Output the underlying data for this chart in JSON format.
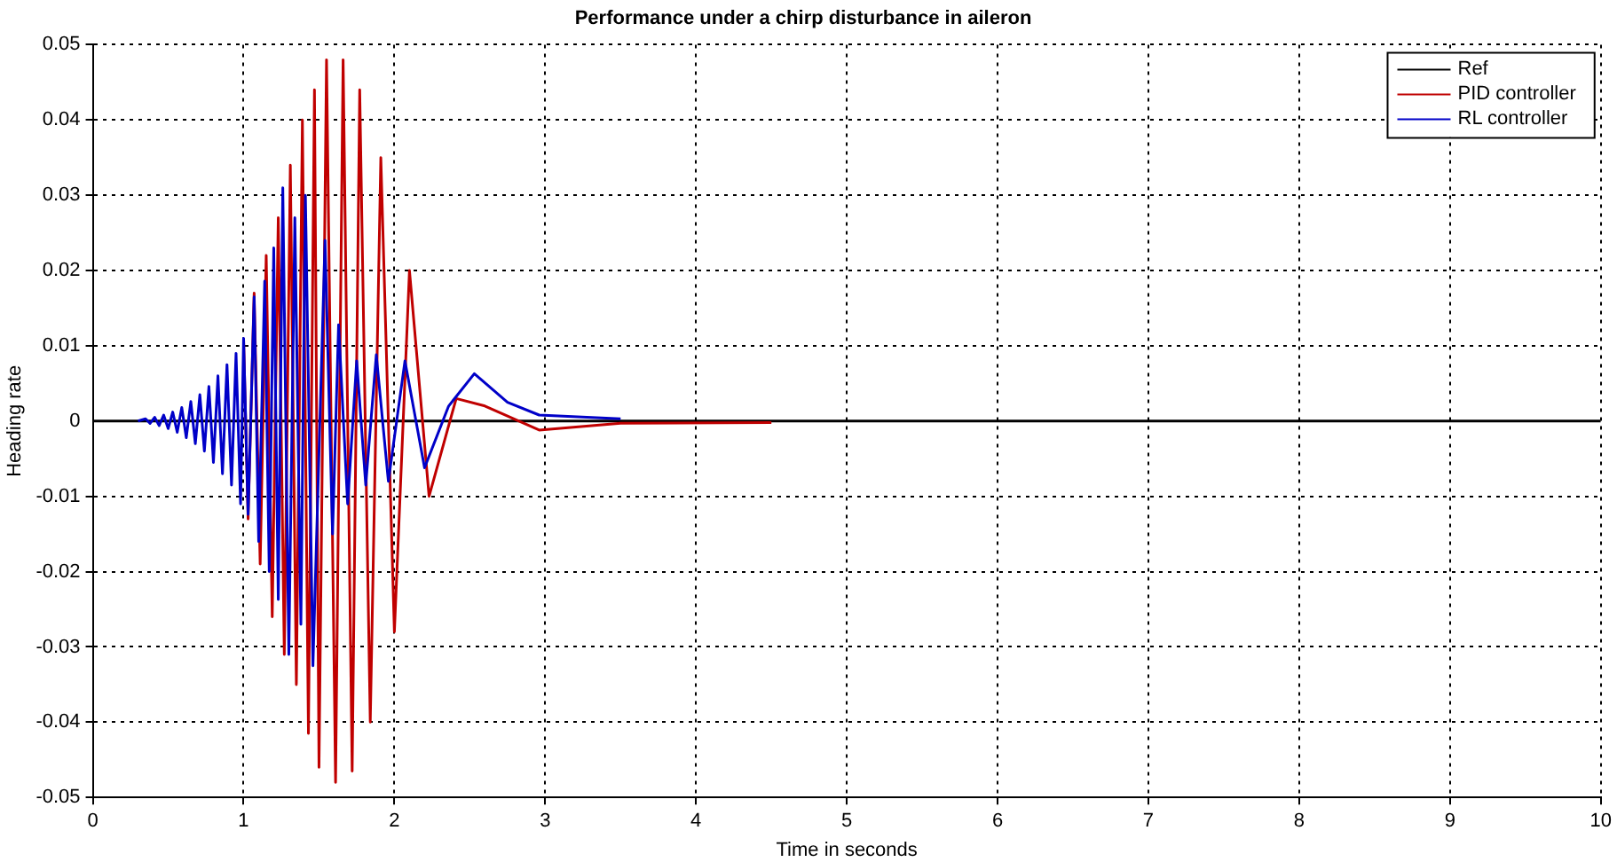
{
  "chart_data": {
    "type": "line",
    "title": "Performance under a chirp disturbance in aileron",
    "xlabel": "Time in seconds",
    "ylabel": "Heading rate",
    "xlim": [
      0,
      10
    ],
    "xticks": [
      0,
      1,
      2,
      3,
      4,
      5,
      6,
      7,
      8,
      9,
      10
    ],
    "ylim": [
      -0.05,
      0.05
    ],
    "yticks": [
      -0.05,
      -0.04,
      -0.03,
      -0.02,
      -0.01,
      0,
      0.01,
      0.02,
      0.03,
      0.04,
      0.05
    ],
    "grid": true,
    "legend": "top right",
    "marker": "none",
    "line_style": "solid",
    "series": [
      {
        "name": "Ref",
        "color": "#000000",
        "x": [
          0,
          10
        ],
        "values": [
          0,
          0
        ]
      },
      {
        "name": "PID controller",
        "color": "#c00000",
        "x": [
          1.0,
          1.03,
          1.07,
          1.11,
          1.15,
          1.19,
          1.23,
          1.27,
          1.31,
          1.35,
          1.39,
          1.43,
          1.47,
          1.5,
          1.55,
          1.61,
          1.66,
          1.72,
          1.77,
          1.84,
          1.91,
          2.0,
          2.1,
          2.23,
          2.41,
          2.6,
          2.96,
          3.5,
          4.5
        ],
        "values": [
          0.011,
          -0.013,
          0.017,
          -0.019,
          0.022,
          -0.026,
          0.027,
          -0.031,
          0.034,
          -0.035,
          0.04,
          -0.0415,
          0.044,
          -0.046,
          0.048,
          -0.048,
          0.048,
          -0.0465,
          0.044,
          -0.04,
          0.035,
          -0.028,
          0.02,
          -0.01,
          0.003,
          0.002,
          -0.0012,
          -0.0003,
          -0.0002
        ]
      },
      {
        "name": "RL controller",
        "color": "#0000c8",
        "x": [
          0.3,
          0.35,
          0.38,
          0.41,
          0.44,
          0.47,
          0.5,
          0.53,
          0.56,
          0.59,
          0.62,
          0.65,
          0.68,
          0.71,
          0.74,
          0.77,
          0.8,
          0.83,
          0.86,
          0.89,
          0.92,
          0.95,
          0.98,
          1.0,
          1.03,
          1.07,
          1.1,
          1.14,
          1.17,
          1.2,
          1.23,
          1.26,
          1.3,
          1.34,
          1.38,
          1.41,
          1.46,
          1.54,
          1.59,
          1.63,
          1.69,
          1.75,
          1.81,
          1.88,
          1.96,
          2.07,
          2.2,
          2.36,
          2.53,
          2.75,
          2.96,
          3.5
        ],
        "values": [
          0,
          0.0003,
          -0.0003,
          0.0005,
          -0.0006,
          0.0008,
          -0.001,
          0.0012,
          -0.0015,
          0.0018,
          -0.0022,
          0.0026,
          -0.003,
          0.0035,
          -0.004,
          0.0046,
          -0.0055,
          0.006,
          -0.007,
          0.0075,
          -0.0085,
          0.009,
          -0.011,
          0.011,
          -0.0124,
          0.0165,
          -0.016,
          0.0186,
          -0.02,
          0.023,
          -0.0237,
          0.031,
          -0.031,
          0.027,
          -0.027,
          0.03,
          -0.0325,
          0.024,
          -0.015,
          0.0128,
          -0.011,
          0.008,
          -0.0085,
          0.0088,
          -0.008,
          0.008,
          -0.0062,
          0.002,
          0.0063,
          0.0025,
          0.0008,
          0.0003
        ]
      }
    ]
  }
}
